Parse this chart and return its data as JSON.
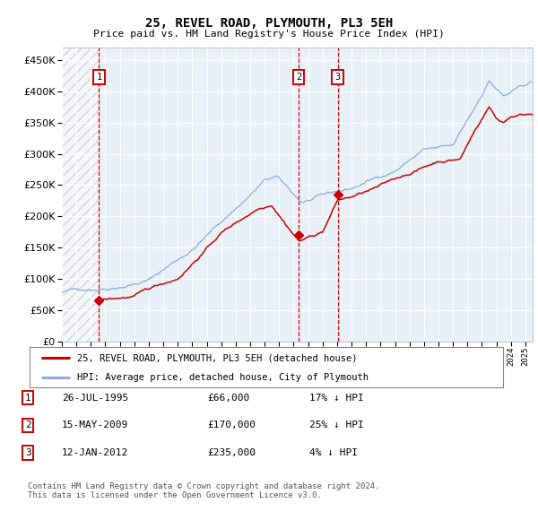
{
  "title": "25, REVEL ROAD, PLYMOUTH, PL3 5EH",
  "subtitle": "Price paid vs. HM Land Registry's House Price Index (HPI)",
  "sale_dates_str": [
    "26-JUL-1995",
    "15-MAY-2009",
    "12-JAN-2012"
  ],
  "sale_dates_num": [
    1995.567,
    2009.37,
    2012.036
  ],
  "sale_prices": [
    66000,
    170000,
    235000
  ],
  "sale_labels": [
    "1",
    "2",
    "3"
  ],
  "sale_info": [
    {
      "label": "1",
      "date": "26-JUL-1995",
      "price": "£66,000",
      "hpi": "17% ↓ HPI"
    },
    {
      "label": "2",
      "date": "15-MAY-2009",
      "price": "£170,000",
      "hpi": "25% ↓ HPI"
    },
    {
      "label": "3",
      "date": "12-JAN-2012",
      "price": "£235,000",
      "hpi": "4% ↓ HPI"
    }
  ],
  "legend_entries": [
    {
      "label": "25, REVEL ROAD, PLYMOUTH, PL3 5EH (detached house)",
      "color": "#cc0000"
    },
    {
      "label": "HPI: Average price, detached house, City of Plymouth",
      "color": "#6699cc"
    }
  ],
  "footer": "Contains HM Land Registry data © Crown copyright and database right 2024.\nThis data is licensed under the Open Government Licence v3.0.",
  "ylim": [
    0,
    470000
  ],
  "yticks": [
    0,
    50000,
    100000,
    150000,
    200000,
    250000,
    300000,
    350000,
    400000,
    450000
  ],
  "xlim_start": 1993.0,
  "xlim_end": 2025.5,
  "hatch_end": 1995.567,
  "plot_bg": "#e8f0f8",
  "grid_color": "#ffffff",
  "red_line_color": "#cc0000",
  "blue_line_color": "#88aadd",
  "sale_marker_color": "#cc0000",
  "dashed_vline_color": "#dd0000"
}
